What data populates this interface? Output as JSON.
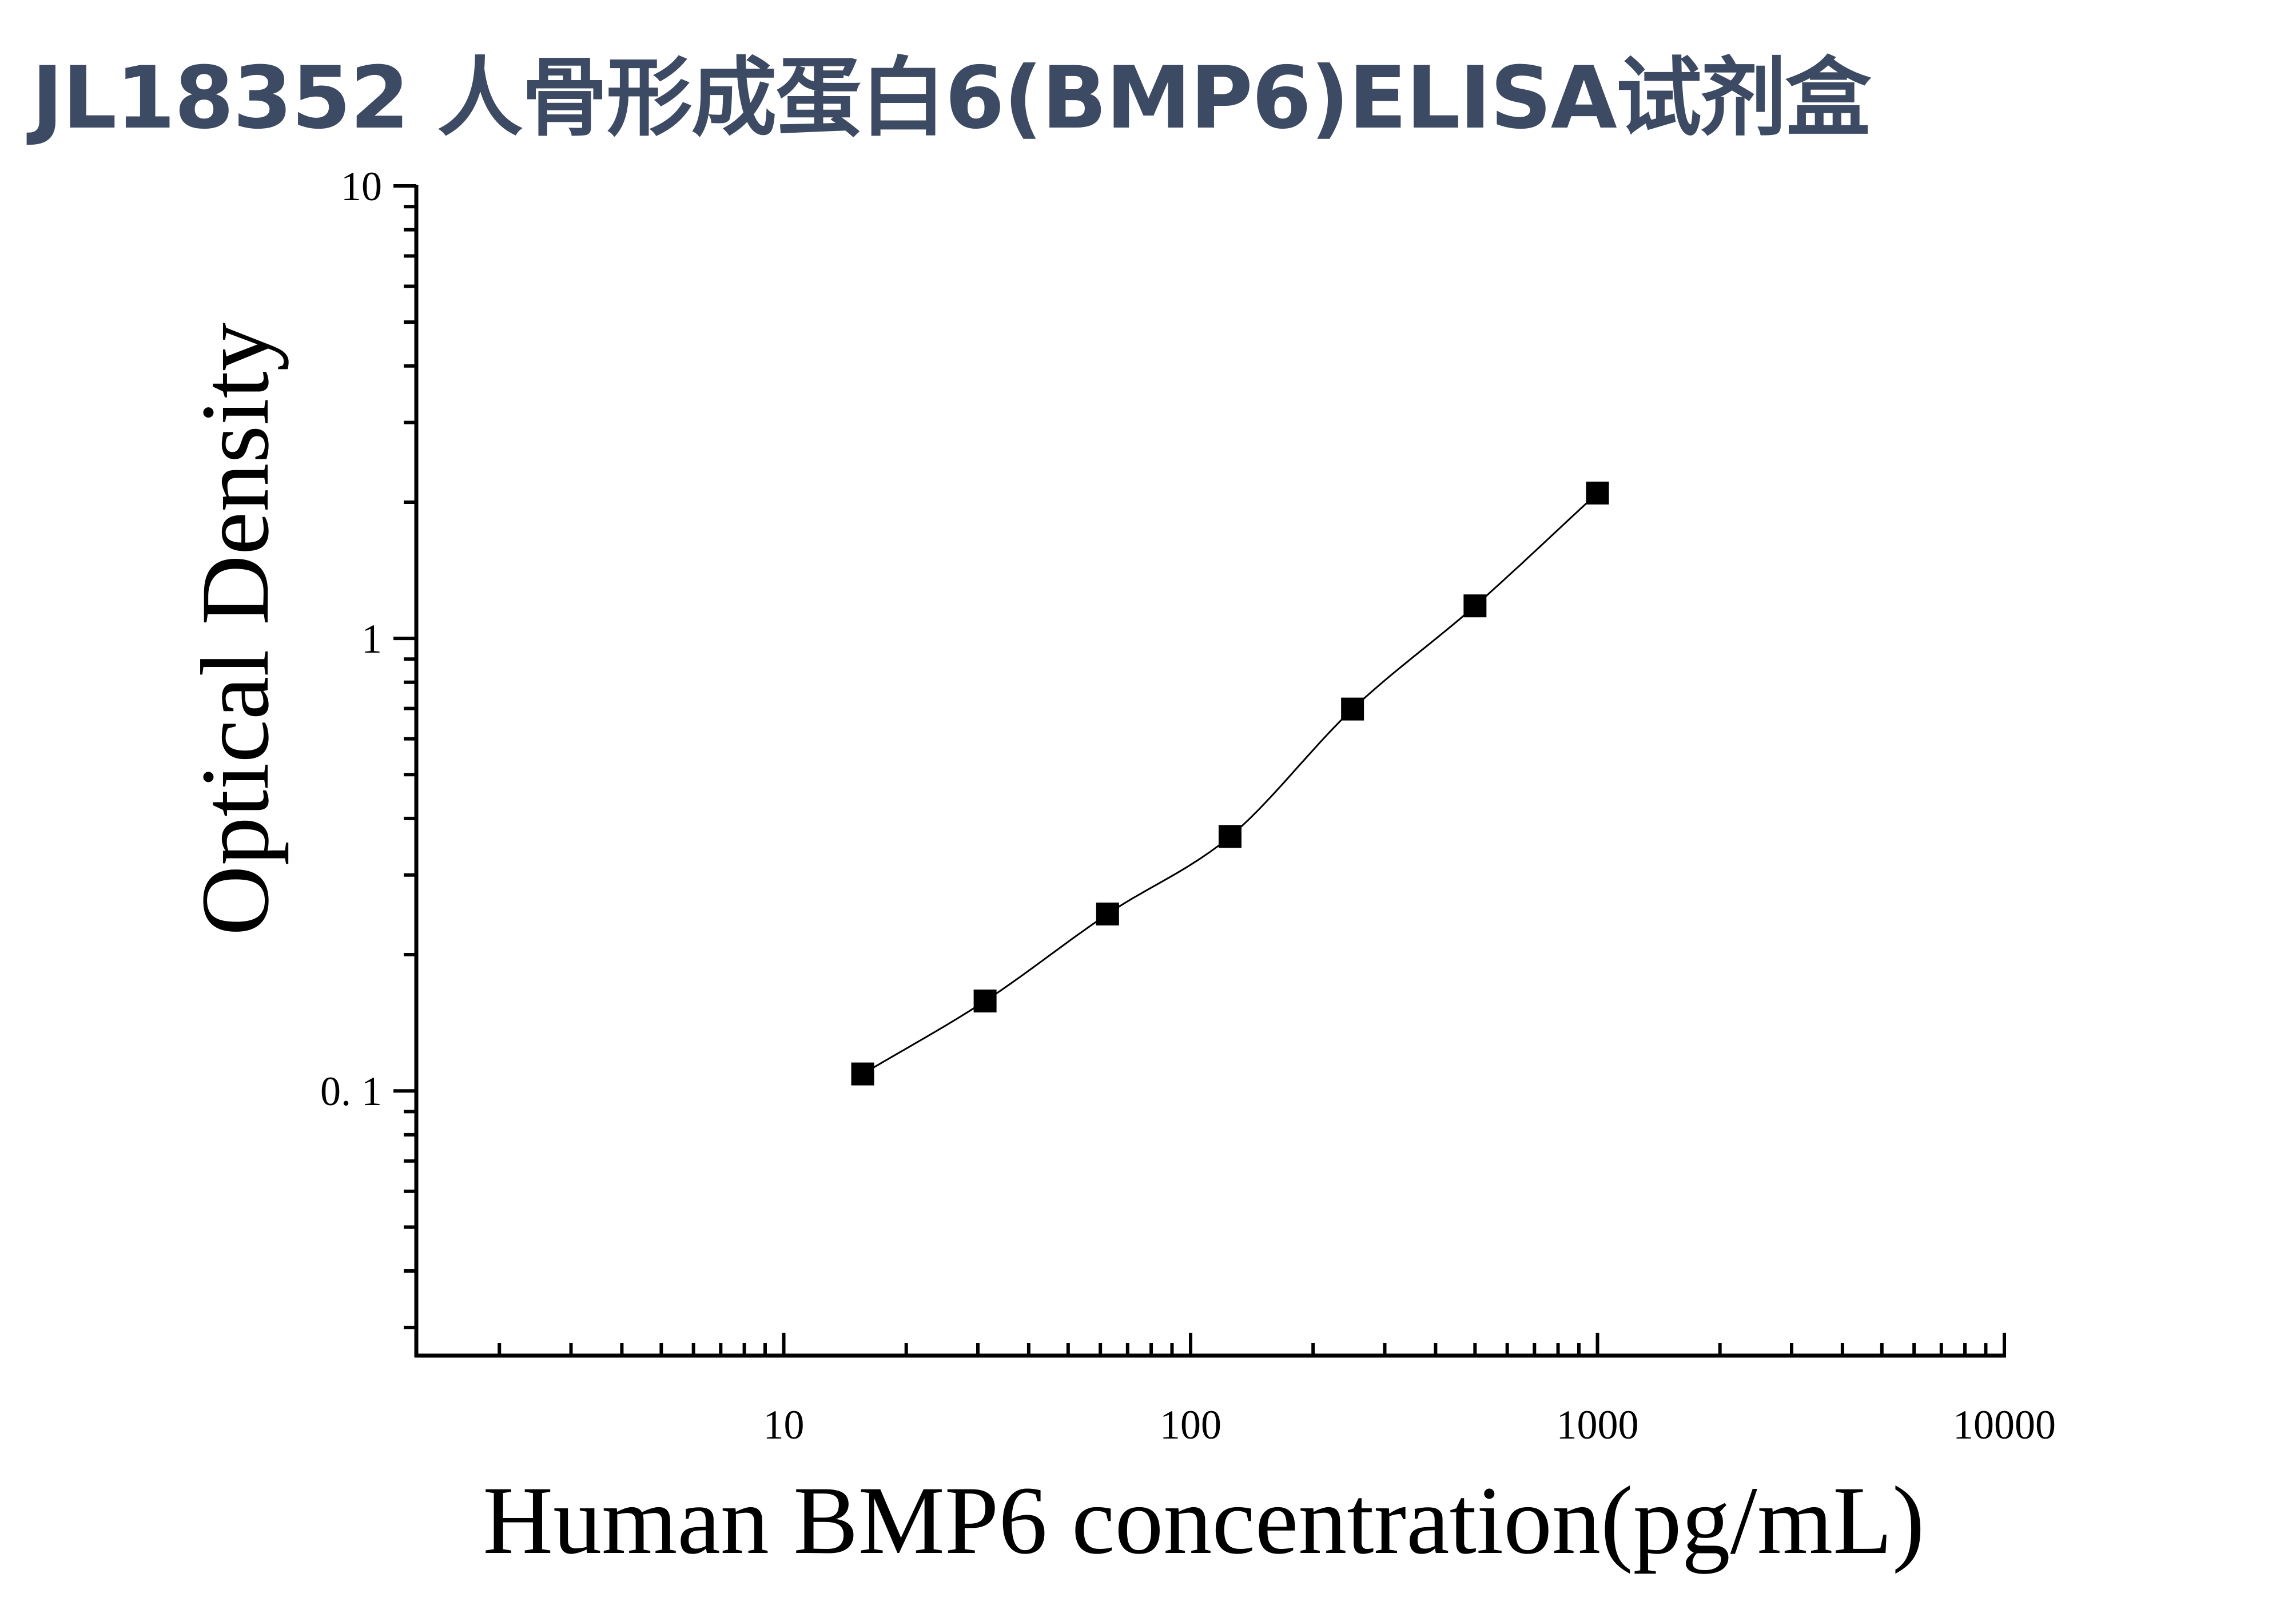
{
  "page": {
    "title": "JL18352 人骨形成蛋白6(BMP6)ELISA试剂盒"
  },
  "chart_data": {
    "type": "scatter",
    "title": "",
    "xlabel": "Human BMP6 concentration(pg/mL)",
    "ylabel": "Optical Density",
    "xscale": "log",
    "yscale": "log",
    "xlim": [
      1.25,
      10000
    ],
    "ylim": [
      0.026,
      10
    ],
    "x_ticks": [
      {
        "value": 10,
        "label": "10"
      },
      {
        "value": 100,
        "label": "100"
      },
      {
        "value": 1000,
        "label": "1000"
      },
      {
        "value": 10000,
        "label": "10000"
      }
    ],
    "y_ticks": [
      {
        "value": 0.1,
        "label": "0. 1"
      },
      {
        "value": 1,
        "label": "1"
      },
      {
        "value": 10,
        "label": "10"
      }
    ],
    "grid": false,
    "marker": "square",
    "series": [
      {
        "x": [
          15.63,
          31.25,
          62.5,
          125,
          250,
          500,
          1000
        ],
        "y": [
          0.109,
          0.158,
          0.246,
          0.365,
          0.698,
          1.18,
          2.095
        ]
      }
    ],
    "colors": {
      "marker": "#000000",
      "curve": "#000000",
      "axis": "#000000",
      "title": "#3d4a63"
    }
  }
}
